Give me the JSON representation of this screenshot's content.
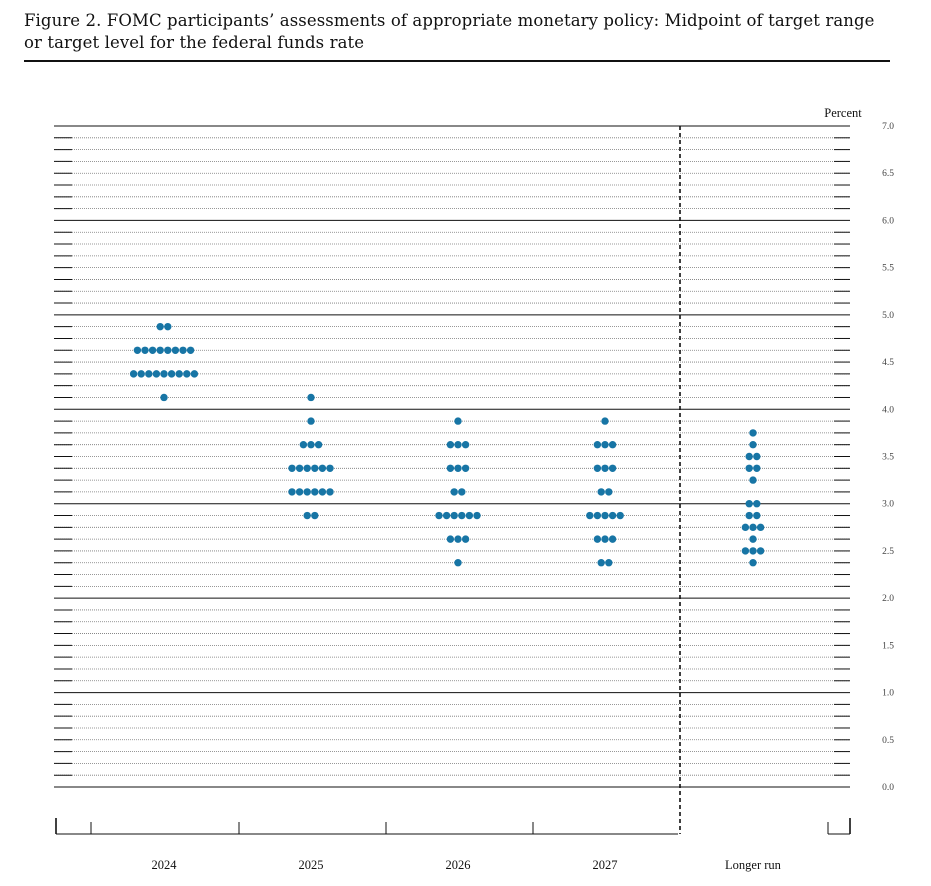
{
  "figure_title": "Figure 2.  FOMC participants’ assessments of appropriate monetary policy:  Midpoint of target range or target level for the federal funds rate",
  "colors": {
    "dot": "#1775a5",
    "line": "#111111",
    "grid": "#777777",
    "tick_label": "#444444"
  },
  "chart_data": {
    "type": "scatter",
    "subtype": "dot-plot",
    "title": "Figure 2.  FOMC participants’ assessments of appropriate monetary policy:  Midpoint of target range or target level for the federal funds rate",
    "ylabel": "Percent",
    "xlabel": "",
    "ylim": [
      0.0,
      7.0
    ],
    "y_ticks": [
      "0.0",
      "0.5",
      "1.0",
      "1.5",
      "2.0",
      "2.5",
      "3.0",
      "3.5",
      "4.0",
      "4.5",
      "5.0",
      "5.5",
      "6.0",
      "6.5",
      "7.0"
    ],
    "categories": [
      "2024",
      "2025",
      "2026",
      "2027",
      "Longer run"
    ],
    "grid": true,
    "divider_before": "Longer run",
    "columns": [
      {
        "category": "2024",
        "points": [
          {
            "y": 4.875,
            "count": 2
          },
          {
            "y": 4.625,
            "count": 8
          },
          {
            "y": 4.375,
            "count": 9
          },
          {
            "y": 4.125,
            "count": 1
          }
        ]
      },
      {
        "category": "2025",
        "points": [
          {
            "y": 4.125,
            "count": 1
          },
          {
            "y": 3.875,
            "count": 1
          },
          {
            "y": 3.625,
            "count": 3
          },
          {
            "y": 3.375,
            "count": 6
          },
          {
            "y": 3.125,
            "count": 6
          },
          {
            "y": 2.875,
            "count": 2
          }
        ]
      },
      {
        "category": "2026",
        "points": [
          {
            "y": 3.875,
            "count": 1
          },
          {
            "y": 3.625,
            "count": 3
          },
          {
            "y": 3.375,
            "count": 3
          },
          {
            "y": 3.125,
            "count": 2
          },
          {
            "y": 2.875,
            "count": 6
          },
          {
            "y": 2.625,
            "count": 3
          },
          {
            "y": 2.375,
            "count": 1
          }
        ]
      },
      {
        "category": "2027",
        "points": [
          {
            "y": 3.875,
            "count": 1
          },
          {
            "y": 3.625,
            "count": 3
          },
          {
            "y": 3.375,
            "count": 3
          },
          {
            "y": 3.125,
            "count": 2
          },
          {
            "y": 2.875,
            "count": 5
          },
          {
            "y": 2.625,
            "count": 3
          },
          {
            "y": 2.375,
            "count": 2
          }
        ]
      },
      {
        "category": "Longer run",
        "points": [
          {
            "y": 3.75,
            "count": 1
          },
          {
            "y": 3.625,
            "count": 1
          },
          {
            "y": 3.5,
            "count": 2
          },
          {
            "y": 3.375,
            "count": 2
          },
          {
            "y": 3.25,
            "count": 1
          },
          {
            "y": 3.0,
            "count": 2
          },
          {
            "y": 2.875,
            "count": 2
          },
          {
            "y": 2.75,
            "count": 3
          },
          {
            "y": 2.625,
            "count": 1
          },
          {
            "y": 2.5,
            "count": 3
          },
          {
            "y": 2.375,
            "count": 1
          }
        ]
      }
    ]
  }
}
